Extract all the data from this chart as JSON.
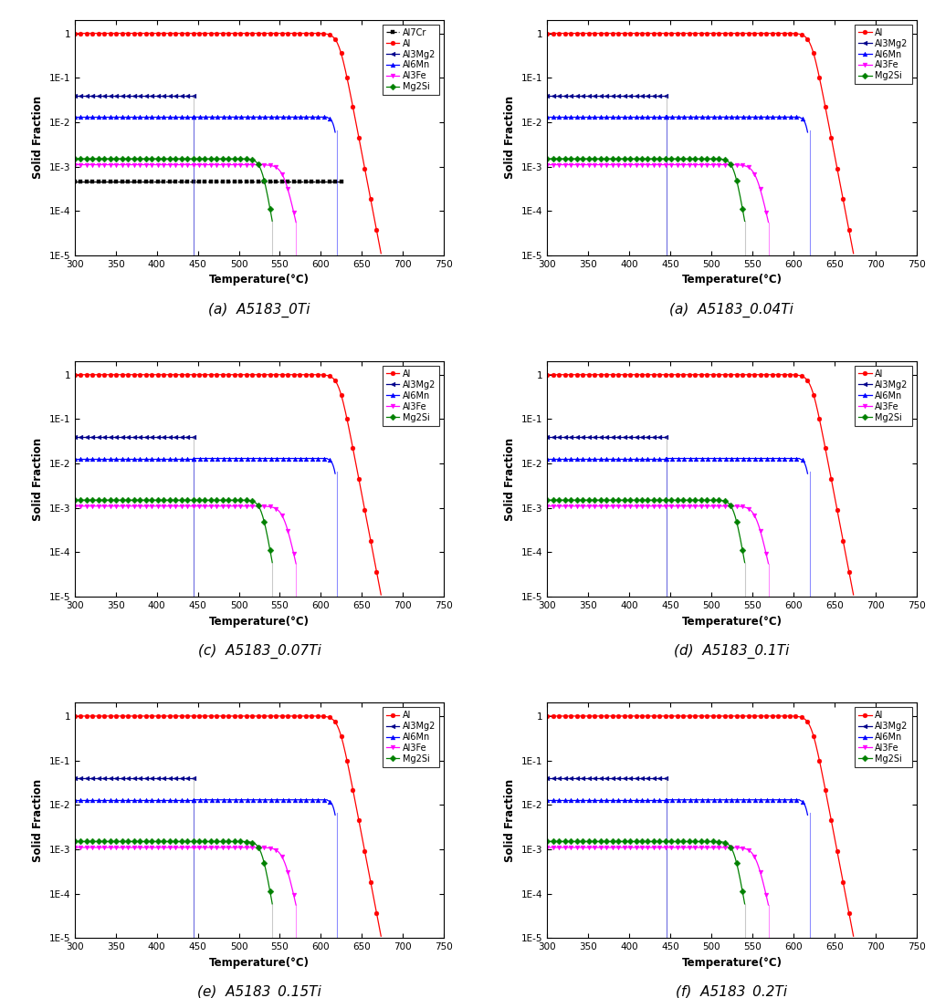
{
  "panels": [
    {
      "label": "(a)  A5183_0Ti",
      "has_Al7Cr": true
    },
    {
      "label": "(a)  A5183_0.04Ti",
      "has_Al7Cr": false
    },
    {
      "label": "(c)  A5183_0.07Ti",
      "has_Al7Cr": false
    },
    {
      "label": "(d)  A5183_0.1Ti",
      "has_Al7Cr": false
    },
    {
      "label": "(e)  A5183_0.15Ti",
      "has_Al7Cr": false
    },
    {
      "label": "(f)  A5183_0.2Ti",
      "has_Al7Cr": false
    }
  ],
  "colors": {
    "Al7Cr": "#000000",
    "Al": "#FF0000",
    "Al6Mn": "#0000FF",
    "Al3Fe": "#FF00FF",
    "Mg2Si": "#008000",
    "Al3Mg2": "#00008B"
  },
  "markers": {
    "Al7Cr": "s",
    "Al": "o",
    "Al6Mn": "^",
    "Al3Fe": "v",
    "Mg2Si": "D",
    "Al3Mg2": "<"
  },
  "xlim": [
    300,
    750
  ],
  "ylim": [
    1e-05,
    2.0
  ],
  "xlabel": "Temperature(°C)",
  "ylabel": "Solid Fraction",
  "xticks": [
    300,
    350,
    400,
    450,
    500,
    550,
    600,
    650,
    700,
    750
  ],
  "ytick_labels": [
    "1E-5",
    "1E-4",
    "1E-3",
    "1E-2",
    "1E-1",
    "1"
  ],
  "ytick_vals": [
    1e-05,
    0.0001,
    0.001,
    0.01,
    0.1,
    1.0
  ]
}
